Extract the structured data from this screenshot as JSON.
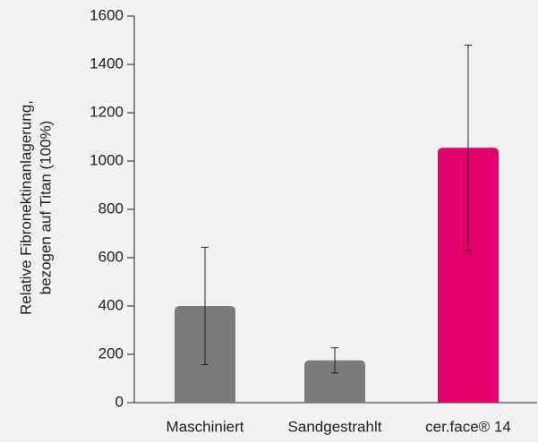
{
  "chart_data": {
    "type": "bar",
    "ylabel": [
      "Relative Fibronektinanlagerung,",
      "bezogen auf Titan (100%)"
    ],
    "categories": [
      "Maschiniert",
      "Sandgestrahlt",
      "cer.face® 14"
    ],
    "values": [
      400,
      175,
      1055
    ],
    "errors": [
      243,
      52,
      425
    ],
    "colors": [
      "#7b7b7b",
      "#7b7b7b",
      "#e2006a"
    ],
    "ylim": [
      0,
      1600
    ],
    "yticks": [
      0,
      200,
      400,
      600,
      800,
      1000,
      1200,
      1400,
      1600
    ],
    "grid": false
  }
}
